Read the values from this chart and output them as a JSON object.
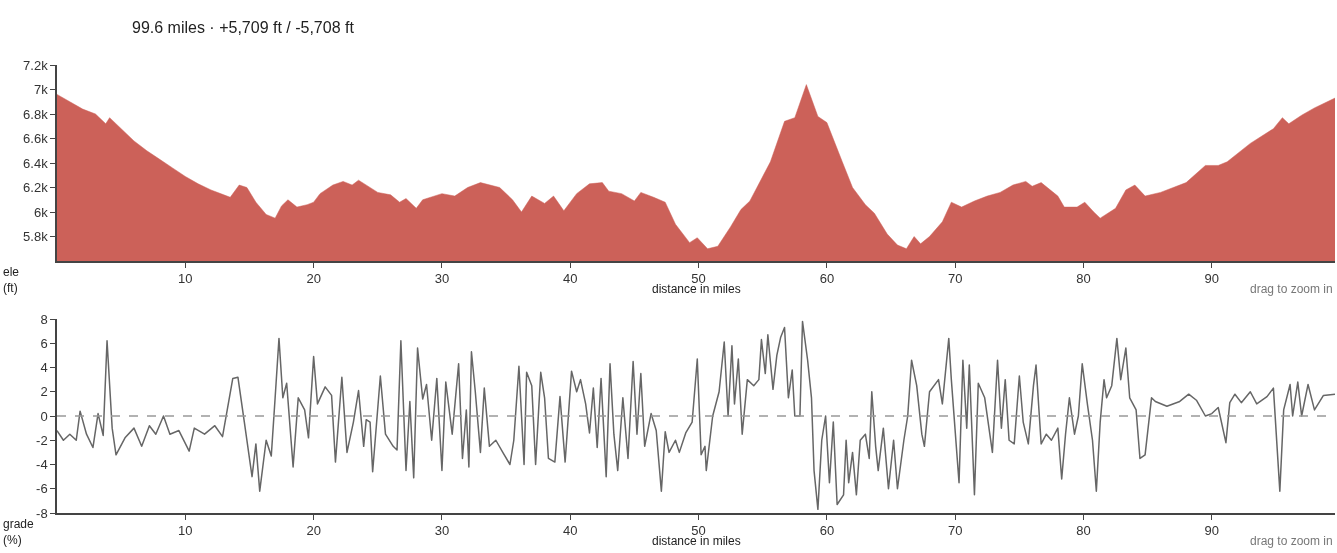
{
  "chart_data": [
    {
      "type": "area",
      "title": "99.6 miles · +5,709 ft / -5,708 ft",
      "xlabel": "distance in miles",
      "ylabel": "ele (ft)",
      "annotations": [
        "drag to zoom in"
      ],
      "grid": false,
      "marker": "none",
      "xlim": [
        0,
        99.6
      ],
      "xticks": [
        10,
        20,
        30,
        40,
        50,
        60,
        70,
        80,
        90
      ],
      "ylim": [
        5600,
        7200
      ],
      "yticks": [
        {
          "value": 5800,
          "label": "5.8k"
        },
        {
          "value": 6000,
          "label": "6k"
        },
        {
          "value": 6200,
          "label": "6.2k"
        },
        {
          "value": 6400,
          "label": "6.4k"
        },
        {
          "value": 6600,
          "label": "6.6k"
        },
        {
          "value": 6800,
          "label": "6.8k"
        },
        {
          "value": 7000,
          "label": "7k"
        },
        {
          "value": 7200,
          "label": "7.2k"
        }
      ],
      "series": [
        {
          "color": "#cc6159",
          "x": [
            0,
            1,
            2,
            3,
            3.8,
            4.1,
            5,
            6,
            7,
            8,
            9,
            10,
            11,
            12,
            13,
            13.5,
            14.2,
            14.8,
            15.5,
            16.3,
            17,
            17.5,
            18,
            18.7,
            19.5,
            20,
            20.5,
            21.5,
            22.3,
            23,
            23.5,
            25,
            26,
            26.7,
            27.2,
            28,
            28.5,
            30,
            31,
            32,
            33,
            34.5,
            35.5,
            36.2,
            37,
            38,
            38.7,
            39.5,
            40.5,
            41.5,
            42.5,
            43,
            44,
            45,
            45.5,
            46.5,
            47.4,
            48.2,
            49.3,
            49.9,
            50.7,
            51.5,
            52.5,
            53.3,
            54,
            55.6,
            56.7,
            57.5,
            58.4,
            59.3,
            60,
            61.2,
            62,
            63,
            63.7,
            64.7,
            65.5,
            66.2,
            66.8,
            67.3,
            68,
            69,
            69.7,
            70.5,
            71.5,
            72.5,
            73.5,
            74.5,
            75.5,
            76,
            76.7,
            78,
            78.5,
            79.5,
            80.1,
            80.8,
            81.3,
            82.5,
            83.3,
            84,
            84.8,
            86,
            88,
            89.5,
            90.5,
            91.2,
            93,
            94.8,
            95.5,
            96,
            97,
            98,
            99.6
          ],
          "values": [
            6960,
            6900,
            6840,
            6800,
            6720,
            6770,
            6680,
            6580,
            6500,
            6430,
            6360,
            6290,
            6230,
            6180,
            6140,
            6120,
            6220,
            6200,
            6080,
            5980,
            5950,
            6050,
            6100,
            6040,
            6060,
            6080,
            6150,
            6220,
            6250,
            6220,
            6260,
            6160,
            6140,
            6080,
            6110,
            6030,
            6100,
            6150,
            6130,
            6200,
            6240,
            6200,
            6100,
            6000,
            6130,
            6070,
            6130,
            6010,
            6150,
            6230,
            6240,
            6170,
            6150,
            6090,
            6160,
            6120,
            6080,
            5900,
            5750,
            5790,
            5700,
            5720,
            5880,
            6020,
            6090,
            6410,
            6740,
            6770,
            7040,
            6780,
            6730,
            6410,
            6200,
            6060,
            5990,
            5820,
            5730,
            5700,
            5800,
            5740,
            5800,
            5920,
            6080,
            6040,
            6090,
            6130,
            6160,
            6220,
            6250,
            6210,
            6240,
            6130,
            6040,
            6040,
            6080,
            6000,
            5950,
            6030,
            6180,
            6220,
            6130,
            6160,
            6240,
            6380,
            6380,
            6410,
            6560,
            6680,
            6770,
            6720,
            6790,
            6850,
            6930
          ]
        }
      ]
    },
    {
      "type": "line",
      "xlabel": "distance in miles",
      "ylabel": "grade (%)",
      "annotations": [
        "drag to zoom in"
      ],
      "grid": false,
      "marker": "none",
      "line_style": "solid",
      "xlim": [
        0,
        99.6
      ],
      "xticks": [
        10,
        20,
        30,
        40,
        50,
        60,
        70,
        80,
        90
      ],
      "ylim": [
        -8,
        8
      ],
      "yticks": [
        -8,
        -6,
        -4,
        -2,
        0,
        2,
        4,
        6,
        8
      ],
      "ref_lines": [
        {
          "axis": "y",
          "value": 0,
          "color": "#999999",
          "line_style": "dashed"
        }
      ],
      "series": [
        {
          "color": "#666666",
          "x": [
            0,
            0.5,
            1,
            1.5,
            1.8,
            2.3,
            2.8,
            3.2,
            3.6,
            3.9,
            4.3,
            4.6,
            5.3,
            6,
            6.6,
            7.2,
            7.7,
            8.3,
            8.8,
            9.5,
            10.3,
            10.7,
            11.5,
            12.3,
            12.9,
            13.7,
            14.1,
            14.6,
            15.2,
            15.5,
            15.8,
            16.3,
            16.7,
            17,
            17.3,
            17.6,
            17.9,
            18.4,
            18.8,
            19.3,
            19.6,
            20,
            20.3,
            20.9,
            21.4,
            21.7,
            22.2,
            22.6,
            23.1,
            23.5,
            23.9,
            24.1,
            24.4,
            24.6,
            25.2,
            25.6,
            26.2,
            26.5,
            26.8,
            27.2,
            27.5,
            27.8,
            28.1,
            28.5,
            28.8,
            29.2,
            29.6,
            30,
            30.3,
            30.8,
            31.3,
            31.6,
            31.9,
            32.1,
            32.3,
            32.6,
            33,
            33.3,
            33.7,
            34.2,
            34.8,
            35.3,
            35.6,
            36,
            36.4,
            36.6,
            37,
            37.3,
            37.7,
            38,
            38.3,
            38.8,
            39.2,
            39.6,
            40.1,
            40.5,
            40.8,
            41.2,
            41.5,
            41.8,
            42.1,
            42.4,
            42.8,
            43.1,
            43.4,
            43.7,
            44.1,
            44.5,
            44.9,
            45.2,
            45.5,
            45.8,
            46.3,
            46.7,
            47.1,
            47.4,
            47.7,
            48.2,
            48.5,
            49,
            49.5,
            49.9,
            50.2,
            50.5,
            50.6,
            51.1,
            51.6,
            52,
            52.3,
            52.6,
            52.8,
            53.1,
            53.4,
            53.8,
            54.3,
            54.7,
            54.9,
            55.2,
            55.4,
            55.8,
            56.1,
            56.4,
            56.7,
            57,
            57.3,
            57.5,
            57.9,
            58.1,
            58.5,
            58.8,
            59,
            59.3,
            59.6,
            59.9,
            60.2,
            60.5,
            60.8,
            61.3,
            61.5,
            61.7,
            62,
            62.3,
            62.6,
            63,
            63.3,
            63.5,
            63.8,
            64,
            64.4,
            64.8,
            65.2,
            65.5,
            66,
            66.3,
            66.6,
            67,
            67.4,
            67.6,
            68,
            68.7,
            69,
            69.5,
            69.7,
            70.3,
            70.6,
            70.9,
            71.1,
            71.5,
            71.8,
            72.3,
            72.9,
            73.3,
            73.6,
            73.9,
            74.2,
            74.6,
            75,
            75.3,
            75.7,
            76.1,
            76.3,
            76.7,
            77.1,
            77.5,
            78,
            78.3,
            78.6,
            78.9,
            79.3,
            79.6,
            79.9,
            80.3,
            80.7,
            81,
            81.3,
            81.6,
            81.8,
            82.2,
            82.6,
            82.9,
            83.3,
            83.6,
            84.1,
            84.4,
            84.8,
            85.3,
            85.6,
            86.5,
            87.5,
            88.2,
            88.8,
            89.5,
            90,
            90.5,
            91.1,
            91.4,
            91.8,
            92.3,
            93,
            93.5,
            94.3,
            94.8,
            95.3,
            95.6,
            96.1,
            96.3,
            96.7,
            97,
            97.5,
            98,
            98.7,
            99.6
          ],
          "values": [
            -1.2,
            -2,
            -1.5,
            -2,
            0.4,
            -1.5,
            -2.6,
            0.2,
            -1.6,
            6.2,
            -1,
            -3.2,
            -1.8,
            -1,
            -2.5,
            -0.8,
            -1.5,
            0,
            -1.5,
            -1.2,
            -2.9,
            -1,
            -1.5,
            -0.8,
            -1.7,
            3.1,
            3.2,
            -0.5,
            -5,
            -2.3,
            -6.2,
            -2,
            -3.3,
            1.5,
            6.4,
            1.5,
            2.7,
            -4.2,
            1.5,
            0.5,
            -1.8,
            4.9,
            1,
            2.4,
            1.7,
            -3.8,
            3.2,
            -3,
            -0.5,
            2.1,
            -2.5,
            -0.3,
            -0.5,
            -4.6,
            3.3,
            -1.5,
            -2.5,
            -2.8,
            6.2,
            -4.5,
            1.2,
            -5.1,
            5.6,
            1.4,
            2.6,
            -2,
            3.1,
            -4.5,
            2.8,
            -1.5,
            4.3,
            -3.5,
            0.5,
            -4.2,
            5.3,
            2,
            -3,
            2.3,
            -2.5,
            -2,
            -3.1,
            -4,
            -2,
            4.1,
            -4,
            3.6,
            2.5,
            -4,
            3.6,
            1.5,
            -3.5,
            -3.8,
            1.6,
            -3.8,
            3.7,
            2,
            3,
            1,
            -1.4,
            2.3,
            -2.6,
            3.1,
            -5,
            4.3,
            -1.5,
            -4.5,
            1.5,
            -3.5,
            4.5,
            -1.5,
            3.5,
            -2.5,
            0.2,
            -1.2,
            -6.2,
            -1.3,
            -3,
            -2,
            -3,
            -1.4,
            -0.5,
            4.7,
            -3.2,
            -2.5,
            -4.5,
            0,
            2,
            6.1,
            0,
            5.8,
            1,
            4.7,
            -1.5,
            3,
            2.5,
            3,
            6.3,
            3.5,
            6.7,
            2.2,
            5,
            6.5,
            7.3,
            1.5,
            3.8,
            0,
            0,
            7.8,
            4.6,
            1.5,
            -4.5,
            -7.7,
            -2,
            0,
            -5.5,
            -0.5,
            -7.3,
            -6.5,
            -2,
            -5.5,
            -3,
            -6.5,
            -2,
            -1.5,
            -3.5,
            2,
            -2.5,
            -4.5,
            -1,
            -6,
            -2,
            -6,
            -2,
            0,
            4.6,
            2.5,
            -1.5,
            -2.5,
            2,
            3,
            1,
            6.4,
            3,
            -5.5,
            4.6,
            -1,
            4.2,
            -6.5,
            2.7,
            1.5,
            -3,
            4.6,
            -1,
            3,
            -2,
            -2.3,
            3.3,
            -0.5,
            -2.3,
            2.5,
            4.2,
            -2.3,
            -1.5,
            -2,
            -1,
            -5.2,
            -1.5,
            1.5,
            -1.5,
            0,
            4.3,
            1,
            -2,
            -6.2,
            -0.5,
            3,
            1.5,
            2.5,
            6.4,
            3,
            5.6,
            1.5,
            0.5,
            -3.5,
            -3.2,
            1.5,
            1.2,
            0.8,
            1.2,
            1.8,
            1.3,
            0,
            0.2,
            0.7,
            -2.2,
            1.1,
            1.8,
            1.1,
            2,
            1,
            1.6,
            2.3,
            -6.2,
            0.5,
            2.6,
            0,
            2.8,
            0,
            2.6,
            0.5,
            1.7,
            1.8
          ]
        }
      ]
    }
  ]
}
